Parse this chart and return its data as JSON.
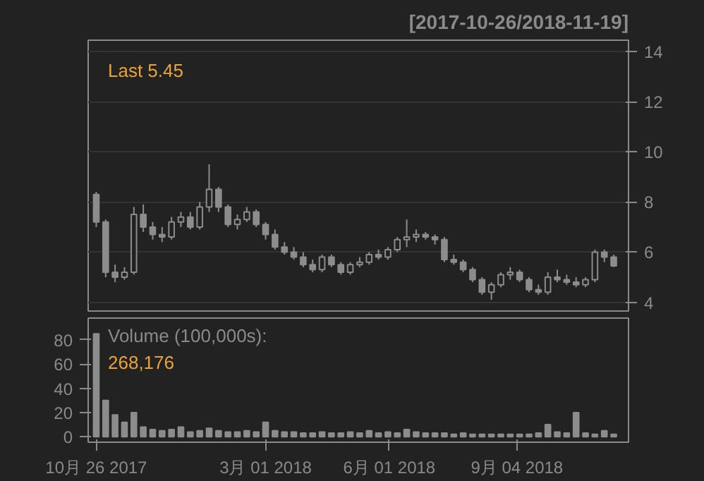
{
  "chart_data": [
    {
      "type": "candlestick",
      "subtitle": "[2017-10-26/2018-11-19]",
      "annotations": [
        "Last 5.45"
      ],
      "x": [
        "2017-10-26",
        "2017-11-02",
        "2017-11-09",
        "2017-11-16",
        "2017-11-23",
        "2017-11-30",
        "2017-12-07",
        "2017-12-14",
        "2017-12-21",
        "2017-12-28",
        "2018-01-04",
        "2018-01-11",
        "2018-01-18",
        "2018-01-25",
        "2018-02-01",
        "2018-02-08",
        "2018-02-15",
        "2018-02-22",
        "2018-03-01",
        "2018-03-08",
        "2018-03-15",
        "2018-03-22",
        "2018-03-29",
        "2018-04-05",
        "2018-04-12",
        "2018-04-19",
        "2018-04-26",
        "2018-05-03",
        "2018-05-10",
        "2018-05-17",
        "2018-05-24",
        "2018-05-31",
        "2018-06-07",
        "2018-06-14",
        "2018-06-21",
        "2018-06-28",
        "2018-07-05",
        "2018-07-12",
        "2018-07-19",
        "2018-07-26",
        "2018-08-02",
        "2018-08-09",
        "2018-08-16",
        "2018-08-23",
        "2018-08-30",
        "2018-09-06",
        "2018-09-13",
        "2018-09-20",
        "2018-09-27",
        "2018-10-04",
        "2018-10-11",
        "2018-10-18",
        "2018-10-25",
        "2018-11-01",
        "2018-11-08",
        "2018-11-15"
      ],
      "ohlc": [
        [
          8.3,
          8.4,
          7.0,
          7.2
        ],
        [
          7.2,
          7.3,
          5.0,
          5.2
        ],
        [
          5.2,
          5.5,
          4.8,
          5.0
        ],
        [
          5.0,
          5.4,
          4.9,
          5.2
        ],
        [
          5.2,
          7.8,
          5.1,
          7.5
        ],
        [
          7.5,
          7.9,
          6.8,
          7.0
        ],
        [
          7.0,
          7.2,
          6.5,
          6.7
        ],
        [
          6.7,
          7.0,
          6.4,
          6.6
        ],
        [
          6.6,
          7.4,
          6.5,
          7.2
        ],
        [
          7.2,
          7.6,
          7.0,
          7.4
        ],
        [
          7.4,
          7.6,
          6.9,
          7.0
        ],
        [
          7.0,
          8.0,
          6.9,
          7.8
        ],
        [
          7.8,
          9.5,
          7.6,
          8.5
        ],
        [
          8.5,
          8.6,
          7.6,
          7.8
        ],
        [
          7.8,
          7.9,
          7.0,
          7.1
        ],
        [
          7.1,
          7.5,
          6.9,
          7.3
        ],
        [
          7.3,
          7.8,
          7.2,
          7.6
        ],
        [
          7.6,
          7.7,
          7.0,
          7.1
        ],
        [
          7.1,
          7.2,
          6.5,
          6.7
        ],
        [
          6.7,
          6.9,
          6.1,
          6.2
        ],
        [
          6.2,
          6.4,
          5.9,
          6.0
        ],
        [
          6.0,
          6.2,
          5.7,
          5.8
        ],
        [
          5.8,
          6.0,
          5.4,
          5.5
        ],
        [
          5.5,
          5.7,
          5.2,
          5.3
        ],
        [
          5.3,
          5.9,
          5.2,
          5.8
        ],
        [
          5.8,
          5.9,
          5.4,
          5.5
        ],
        [
          5.5,
          5.6,
          5.1,
          5.2
        ],
        [
          5.2,
          5.6,
          5.1,
          5.5
        ],
        [
          5.5,
          5.8,
          5.4,
          5.6
        ],
        [
          5.6,
          6.0,
          5.5,
          5.9
        ],
        [
          5.9,
          6.1,
          5.7,
          5.8
        ],
        [
          5.8,
          6.2,
          5.7,
          6.1
        ],
        [
          6.1,
          6.6,
          6.0,
          6.5
        ],
        [
          6.5,
          7.3,
          6.2,
          6.6
        ],
        [
          6.6,
          6.9,
          6.4,
          6.7
        ],
        [
          6.7,
          6.8,
          6.5,
          6.6
        ],
        [
          6.6,
          6.7,
          6.3,
          6.5
        ],
        [
          6.5,
          6.6,
          5.6,
          5.7
        ],
        [
          5.7,
          5.9,
          5.5,
          5.6
        ],
        [
          5.6,
          5.7,
          5.2,
          5.3
        ],
        [
          5.3,
          5.4,
          4.8,
          4.9
        ],
        [
          4.9,
          5.0,
          4.3,
          4.4
        ],
        [
          4.4,
          4.8,
          4.1,
          4.7
        ],
        [
          4.7,
          5.2,
          4.6,
          5.1
        ],
        [
          5.1,
          5.4,
          4.9,
          5.2
        ],
        [
          5.2,
          5.3,
          4.8,
          4.9
        ],
        [
          4.9,
          5.0,
          4.4,
          4.5
        ],
        [
          4.5,
          4.7,
          4.3,
          4.4
        ],
        [
          4.4,
          5.2,
          4.3,
          5.0
        ],
        [
          5.0,
          5.3,
          4.8,
          4.9
        ],
        [
          4.9,
          5.1,
          4.7,
          4.8
        ],
        [
          4.8,
          5.0,
          4.6,
          4.7
        ],
        [
          4.7,
          5.0,
          4.6,
          4.9
        ],
        [
          4.9,
          6.1,
          4.8,
          6.0
        ],
        [
          6.0,
          6.1,
          5.6,
          5.8
        ],
        [
          5.8,
          5.9,
          5.4,
          5.45
        ]
      ],
      "color": "#8c8c8c",
      "xlim": [
        "2017-10-20",
        "2018-11-26"
      ],
      "ylim": [
        3.65,
        14.45
      ],
      "yticks": [
        4,
        6,
        8,
        10,
        12,
        14
      ],
      "grid": "y",
      "tick_labels": "y"
    },
    {
      "type": "bar",
      "annotations": [
        "Volume (100,000s):",
        "268,176"
      ],
      "x": [
        "2017-10-26",
        "2017-11-02",
        "2017-11-09",
        "2017-11-16",
        "2017-11-23",
        "2017-11-30",
        "2017-12-07",
        "2017-12-14",
        "2017-12-21",
        "2017-12-28",
        "2018-01-04",
        "2018-01-11",
        "2018-01-18",
        "2018-01-25",
        "2018-02-01",
        "2018-02-08",
        "2018-02-15",
        "2018-02-22",
        "2018-03-01",
        "2018-03-08",
        "2018-03-15",
        "2018-03-22",
        "2018-03-29",
        "2018-04-05",
        "2018-04-12",
        "2018-04-19",
        "2018-04-26",
        "2018-05-03",
        "2018-05-10",
        "2018-05-17",
        "2018-05-24",
        "2018-05-31",
        "2018-06-07",
        "2018-06-14",
        "2018-06-21",
        "2018-06-28",
        "2018-07-05",
        "2018-07-12",
        "2018-07-19",
        "2018-07-26",
        "2018-08-02",
        "2018-08-09",
        "2018-08-16",
        "2018-08-23",
        "2018-08-30",
        "2018-09-06",
        "2018-09-13",
        "2018-09-20",
        "2018-09-27",
        "2018-10-04",
        "2018-10-11",
        "2018-10-18",
        "2018-10-25",
        "2018-11-01",
        "2018-11-08",
        "2018-11-15"
      ],
      "values": [
        85,
        30,
        18,
        12,
        20,
        8,
        6,
        5,
        6,
        8,
        4,
        5,
        7,
        5,
        4,
        4,
        5,
        4,
        12,
        5,
        4,
        4,
        3,
        3,
        4,
        3,
        3,
        4,
        3,
        5,
        3,
        4,
        3,
        6,
        4,
        3,
        3,
        3,
        2,
        3,
        2,
        2,
        2,
        2,
        2,
        2,
        2,
        3,
        10,
        4,
        3,
        20,
        3,
        2,
        5,
        2
      ],
      "color": "#8c8c8c",
      "xlim": [
        "2017-10-20",
        "2018-11-26"
      ],
      "ylim": [
        -4.5,
        98
      ],
      "yticks": [
        0,
        20,
        40,
        60,
        80
      ],
      "xticks": [
        {
          "value": "2017-10-26",
          "label": "10月 26 2017"
        },
        {
          "value": "2018-03-01",
          "label": "3月 01 2018"
        },
        {
          "value": "2018-06-01",
          "label": "6月 01 2018"
        },
        {
          "value": "2018-09-04",
          "label": "9月 04 2018"
        }
      ]
    }
  ]
}
